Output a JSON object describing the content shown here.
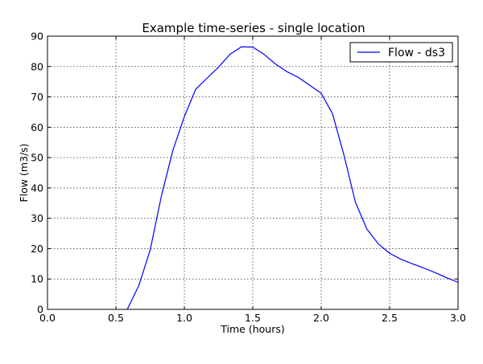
{
  "chart_data": {
    "type": "line",
    "title": "Example time-series - single location",
    "xlabel": "Time (hours)",
    "ylabel": "Flow (m3/s)",
    "xlim": [
      0.0,
      3.0
    ],
    "ylim": [
      0,
      90
    ],
    "x_ticks": [
      "0.0",
      "0.5",
      "1.0",
      "1.5",
      "2.0",
      "2.5",
      "3.0"
    ],
    "x_tick_values": [
      0.0,
      0.5,
      1.0,
      1.5,
      2.0,
      2.5,
      3.0
    ],
    "y_ticks": [
      "0",
      "10",
      "20",
      "30",
      "40",
      "50",
      "60",
      "70",
      "80",
      "90"
    ],
    "y_tick_values": [
      0,
      10,
      20,
      30,
      40,
      50,
      60,
      70,
      80,
      90
    ],
    "grid": true,
    "grid_style": "dotted",
    "legend_position": "top-right",
    "series": [
      {
        "name": "Flow - ds3",
        "color": "#0000ff",
        "x": [
          0.583,
          0.667,
          0.75,
          0.833,
          0.917,
          1.0,
          1.083,
          1.167,
          1.25,
          1.333,
          1.417,
          1.5,
          1.583,
          1.667,
          1.75,
          1.833,
          1.917,
          2.0,
          2.083,
          2.167,
          2.25,
          2.333,
          2.417,
          2.5,
          2.583,
          2.667,
          2.75,
          2.833,
          2.917,
          3.0
        ],
        "y": [
          0,
          7.8,
          19.5,
          37.5,
          52.5,
          63.5,
          72.5,
          76.2,
          79.8,
          84.0,
          86.5,
          86.4,
          84.0,
          80.8,
          78.3,
          76.4,
          73.8,
          71.2,
          64.4,
          50.7,
          35.3,
          26.5,
          21.6,
          18.5,
          16.5,
          15.0,
          13.6,
          12.1,
          10.4,
          8.9
        ]
      }
    ]
  }
}
